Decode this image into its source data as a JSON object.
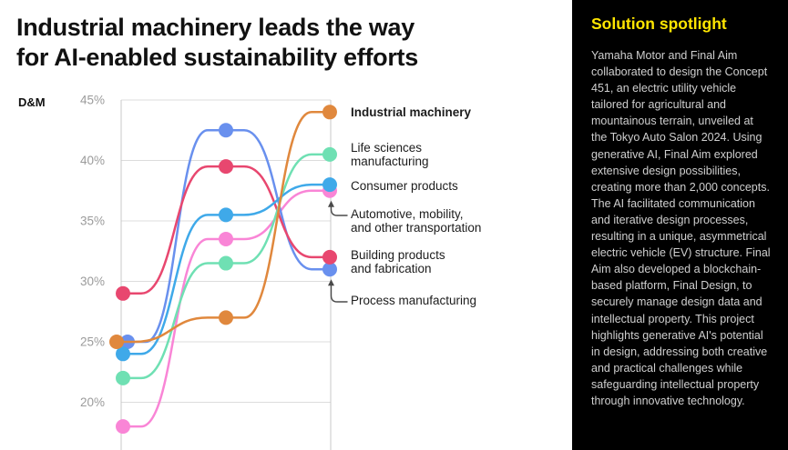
{
  "header": {
    "title": "Industrial machinery leads the way\nfor AI-enabled sustainability efforts"
  },
  "chart": {
    "unit_label": "D&M",
    "y_tick_labels": [
      "45%",
      "40%",
      "35%",
      "30%",
      "25%",
      "20%"
    ]
  },
  "chart_data": {
    "type": "line",
    "subtype": "bump-slope-chart",
    "title": "Industrial machinery leads the way for AI-enabled sustainability efforts",
    "x_columns": 3,
    "x_tick_labels": [
      "",
      "",
      ""
    ],
    "ylim": [
      17,
      46
    ],
    "y_gridlines": [
      45,
      40,
      35,
      30,
      25,
      20
    ],
    "grid": true,
    "legend_position": "right",
    "series": [
      {
        "name": "Industrial machinery",
        "legend_lines": [
          "Industrial machinery"
        ],
        "bold": true,
        "color": "#E0883D",
        "values": [
          25,
          27,
          44
        ]
      },
      {
        "name": "Life sciences manufacturing",
        "legend_lines": [
          "Life sciences",
          "manufacturing"
        ],
        "bold": false,
        "color": "#6FE0B3",
        "values": [
          22,
          31.5,
          40.5
        ]
      },
      {
        "name": "Consumer products",
        "legend_lines": [
          "Consumer products"
        ],
        "bold": false,
        "color": "#3FA9E9",
        "values": [
          24,
          35.5,
          38
        ]
      },
      {
        "name": "Automotive, mobility, and other transportation",
        "legend_lines": [
          "Automotive, mobility,",
          "and other transportation"
        ],
        "bold": false,
        "color": "#F985D6",
        "values": [
          18,
          33.5,
          37.5
        ],
        "arrow": true
      },
      {
        "name": "Building products and fabrication",
        "legend_lines": [
          "Building products",
          "and fabrication"
        ],
        "bold": false,
        "color": "#E8476F",
        "values": [
          29,
          39.5,
          32
        ]
      },
      {
        "name": "Process manufacturing",
        "legend_lines": [
          "Process manufacturing"
        ],
        "bold": false,
        "color": "#6990EE",
        "values": [
          25,
          42.5,
          31
        ],
        "arrow": true
      }
    ]
  },
  "sidebar": {
    "title": "Solution spotlight",
    "accent_color": "#FFE600",
    "background_color": "#000000",
    "body": "Yamaha Motor and Final Aim collaborated to design the Concept 451, an electric utility vehicle tailored for agricultural and mountainous terrain, unveiled at the Tokyo Auto Salon 2024. Using generative AI, Final Aim explored extensive design possibilities, creating more than 2,000 concepts. The AI facilitated communication and iterative design processes, resulting in a unique, asymmetrical electric vehicle (EV) structure. Final Aim also developed a blockchain-based platform, Final Design, to securely manage design data and intellectual property. This project highlights generative AI's potential in design, addressing both creative and practical challenges while safeguarding intellectual property through innovative technology."
  }
}
